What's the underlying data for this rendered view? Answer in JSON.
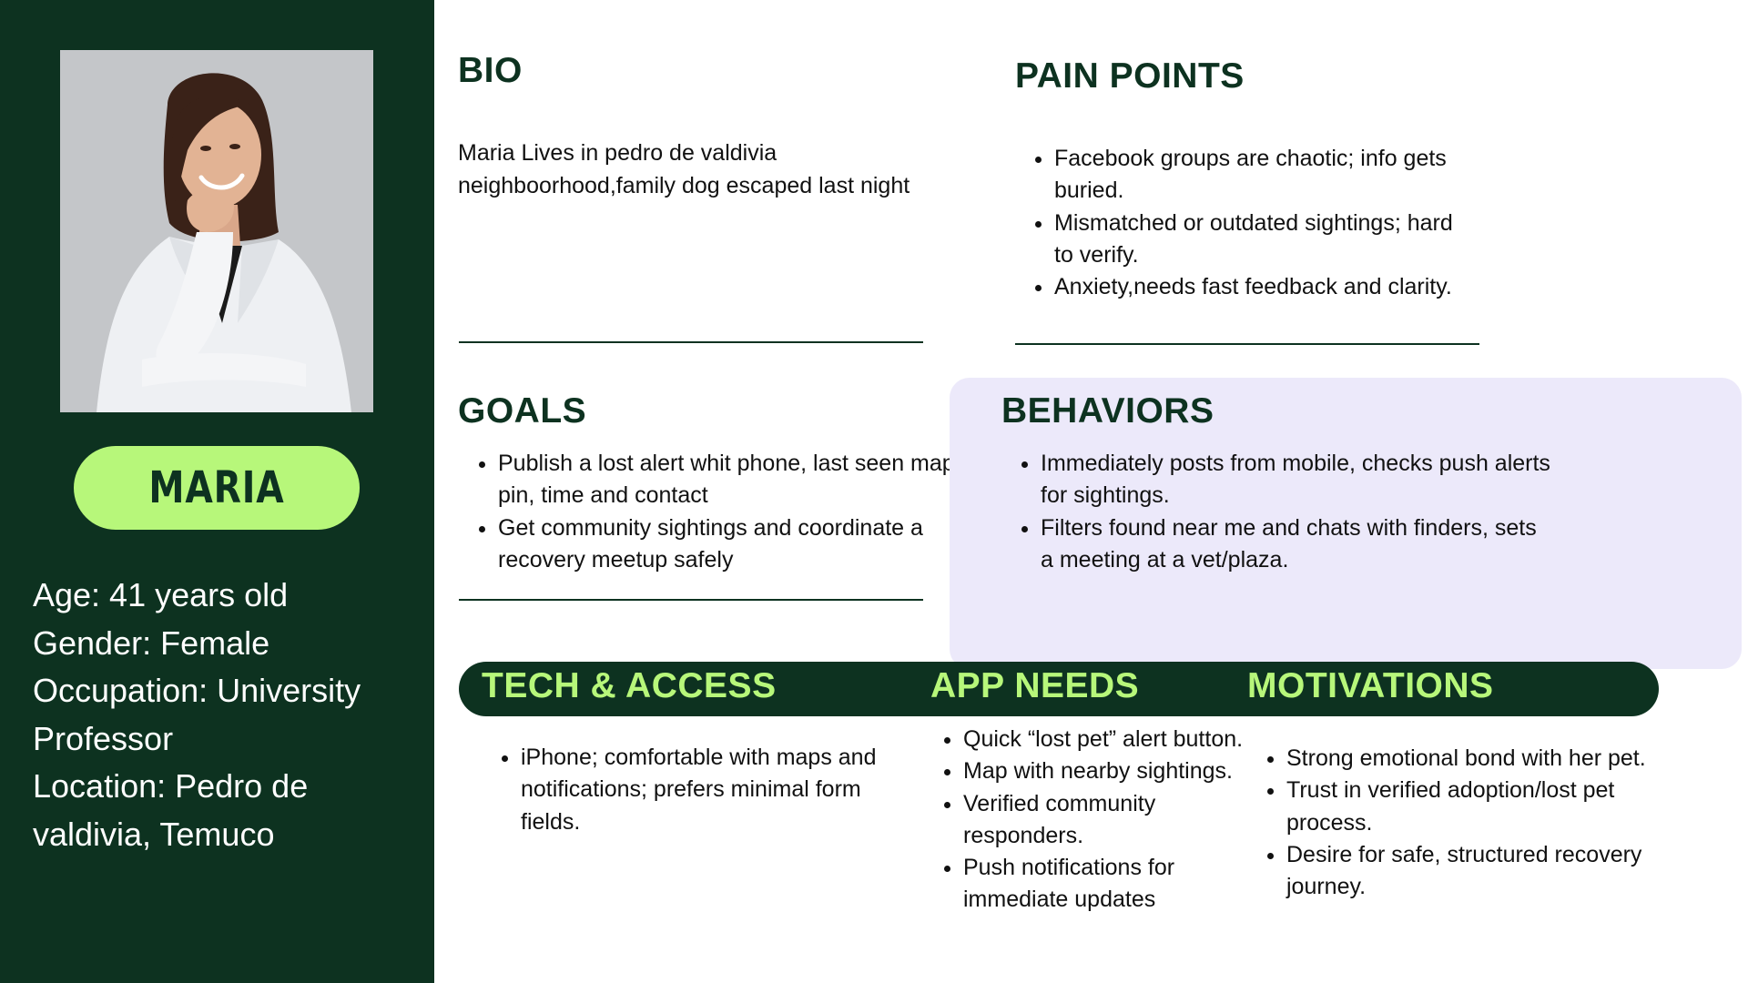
{
  "persona": {
    "name": "MARIA",
    "details": [
      "Age: 41 years old",
      "Gender: Female",
      "Occupation: University",
      "Professor",
      "Location: Pedro de",
      "valdivia, Temuco"
    ]
  },
  "bio": {
    "heading": "BIO",
    "lines": [
      "Maria Lives in pedro de valdivia",
      "neighboorhood,family dog escaped last night"
    ]
  },
  "pain_points": {
    "heading": "PAIN POINTS",
    "items": [
      "Facebook groups are chaotic; info gets buried.",
      "Mismatched or outdated sightings; hard to verify.",
      "Anxiety,needs fast feedback and clarity."
    ]
  },
  "goals": {
    "heading": "GOALS",
    "items": [
      "Publish a lost alert whit phone, last seen map pin, time and contact",
      "Get community sightings and coordinate a recovery meetup safely"
    ]
  },
  "behaviors": {
    "heading": "BEHAVIORS",
    "items": [
      "Immediately posts from mobile, checks push alerts for sightings.",
      "Filters found near me and chats with finders, sets a meeting at a vet/plaza."
    ]
  },
  "tech_access": {
    "heading": "TECH & ACCESS",
    "items": [
      "iPhone; comfortable with maps and notifications; prefers minimal form fields."
    ]
  },
  "app_needs": {
    "heading": "APP NEEDS",
    "items": [
      "Quick “lost pet” alert button.",
      "Map with nearby sightings.",
      "Verified community responders.",
      "Push notifications for immediate updates"
    ]
  },
  "motivations": {
    "heading": "MOTIVATIONS",
    "items": [
      "Strong emotional bond with her pet.",
      "Trust in verified adoption/lost pet process.",
      "Desire for safe, structured recovery journey."
    ]
  },
  "colors": {
    "sidebar": "#0d3220",
    "accent": "#b7f77a",
    "behaviors_panel": "#ece9fa"
  }
}
